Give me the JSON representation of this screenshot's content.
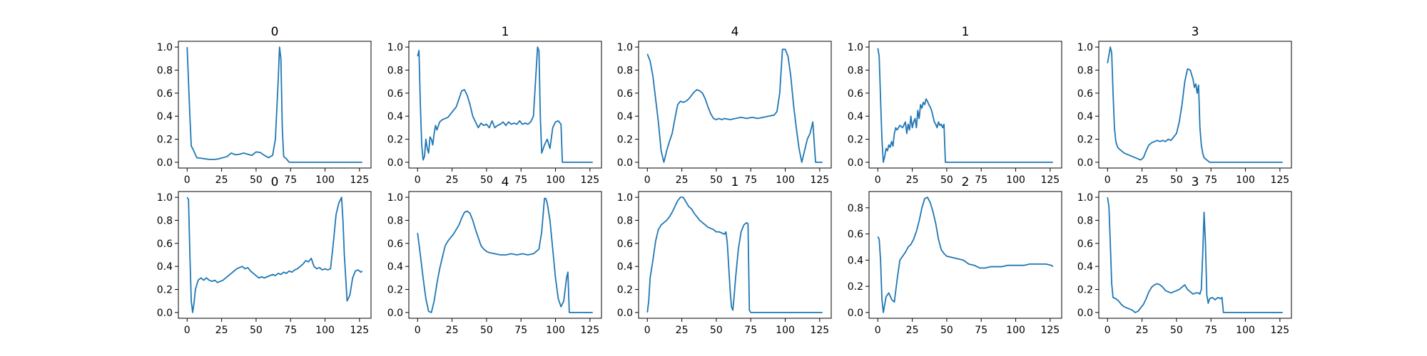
{
  "chart_data": [
    {
      "type": "line",
      "title": "0",
      "xlim": [
        -6.35,
        133.35
      ],
      "ylim": [
        -0.05,
        1.05
      ],
      "xticks": [
        0,
        25,
        50,
        75,
        100,
        125
      ],
      "yticks": [
        0.0,
        0.2,
        0.4,
        0.6,
        0.8,
        1.0
      ],
      "x": [
        0,
        2,
        3,
        4,
        7,
        10,
        13,
        16,
        20,
        23,
        26,
        29,
        32,
        35,
        38,
        41,
        44,
        47,
        50,
        53,
        56,
        59,
        62,
        64,
        66,
        67,
        68,
        69,
        70,
        72,
        74,
        127
      ],
      "values": [
        1.0,
        0.4,
        0.14,
        0.12,
        0.04,
        0.035,
        0.03,
        0.025,
        0.025,
        0.03,
        0.04,
        0.05,
        0.08,
        0.065,
        0.07,
        0.08,
        0.07,
        0.06,
        0.09,
        0.085,
        0.06,
        0.04,
        0.06,
        0.2,
        0.7,
        1.0,
        0.9,
        0.3,
        0.05,
        0.03,
        0.0,
        0.0
      ]
    },
    {
      "type": "line",
      "title": "1",
      "xlim": [
        -6.35,
        133.35
      ],
      "ylim": [
        -0.05,
        1.05
      ],
      "xticks": [
        0,
        25,
        50,
        75,
        100,
        125
      ],
      "yticks": [
        0.0,
        0.2,
        0.4,
        0.6,
        0.8,
        1.0
      ],
      "x": [
        0,
        1,
        2,
        3,
        4,
        5,
        6,
        7,
        8,
        9,
        10,
        11,
        12,
        13,
        14,
        16,
        18,
        20,
        22,
        24,
        26,
        28,
        30,
        32,
        34,
        36,
        38,
        40,
        42,
        44,
        46,
        48,
        50,
        52,
        54,
        56,
        58,
        60,
        62,
        64,
        66,
        68,
        70,
        72,
        74,
        76,
        78,
        80,
        82,
        84,
        86,
        87,
        88,
        89,
        90,
        92,
        94,
        96,
        98,
        100,
        102,
        104,
        105,
        106,
        127
      ],
      "values": [
        0.92,
        0.97,
        0.5,
        0.15,
        0.02,
        0.05,
        0.2,
        0.12,
        0.08,
        0.22,
        0.2,
        0.15,
        0.25,
        0.32,
        0.28,
        0.35,
        0.37,
        0.38,
        0.39,
        0.42,
        0.45,
        0.48,
        0.55,
        0.62,
        0.63,
        0.58,
        0.5,
        0.4,
        0.35,
        0.3,
        0.34,
        0.32,
        0.33,
        0.3,
        0.36,
        0.3,
        0.32,
        0.33,
        0.35,
        0.32,
        0.35,
        0.33,
        0.34,
        0.33,
        0.36,
        0.33,
        0.34,
        0.33,
        0.35,
        0.4,
        0.8,
        1.0,
        0.97,
        0.4,
        0.08,
        0.15,
        0.2,
        0.12,
        0.3,
        0.35,
        0.36,
        0.33,
        0.0,
        0.0,
        0.0
      ]
    },
    {
      "type": "line",
      "title": "4",
      "xlim": [
        -6.35,
        133.35
      ],
      "ylim": [
        -0.05,
        1.05
      ],
      "xticks": [
        0,
        25,
        50,
        75,
        100,
        125
      ],
      "yticks": [
        0.0,
        0.2,
        0.4,
        0.6,
        0.8,
        1.0
      ],
      "x": [
        0,
        2,
        4,
        6,
        8,
        10,
        12,
        14,
        16,
        18,
        20,
        22,
        24,
        26,
        28,
        30,
        32,
        34,
        36,
        38,
        40,
        42,
        44,
        46,
        48,
        50,
        52,
        54,
        56,
        60,
        64,
        68,
        72,
        76,
        80,
        84,
        88,
        92,
        94,
        96,
        98,
        100,
        102,
        104,
        106,
        108,
        110,
        112,
        114,
        116,
        118,
        120,
        122,
        124,
        126,
        127
      ],
      "values": [
        0.94,
        0.88,
        0.75,
        0.55,
        0.35,
        0.1,
        0.0,
        0.1,
        0.18,
        0.25,
        0.38,
        0.5,
        0.53,
        0.52,
        0.53,
        0.55,
        0.58,
        0.61,
        0.63,
        0.62,
        0.6,
        0.55,
        0.48,
        0.42,
        0.38,
        0.37,
        0.38,
        0.37,
        0.38,
        0.37,
        0.38,
        0.39,
        0.38,
        0.39,
        0.38,
        0.39,
        0.4,
        0.41,
        0.44,
        0.6,
        0.98,
        0.98,
        0.92,
        0.75,
        0.5,
        0.3,
        0.12,
        0.0,
        0.1,
        0.2,
        0.25,
        0.35,
        0.0,
        0.0,
        0.0,
        0.0
      ]
    },
    {
      "type": "line",
      "title": "1",
      "xlim": [
        -6.35,
        133.35
      ],
      "ylim": [
        -0.05,
        1.05
      ],
      "xticks": [
        0,
        25,
        50,
        75,
        100,
        125
      ],
      "yticks": [
        0.0,
        0.2,
        0.4,
        0.6,
        0.8,
        1.0
      ],
      "x": [
        0,
        1,
        2,
        3,
        4,
        5,
        6,
        7,
        8,
        9,
        10,
        11,
        12,
        13,
        14,
        16,
        18,
        20,
        21,
        22,
        23,
        24,
        25,
        26,
        27,
        28,
        29,
        30,
        31,
        32,
        33,
        34,
        35,
        36,
        37,
        38,
        39,
        40,
        41,
        42,
        43,
        44,
        45,
        46,
        47,
        48,
        49,
        50,
        127
      ],
      "values": [
        0.99,
        0.92,
        0.55,
        0.2,
        0.0,
        0.05,
        0.12,
        0.1,
        0.15,
        0.13,
        0.18,
        0.14,
        0.25,
        0.3,
        0.28,
        0.32,
        0.3,
        0.35,
        0.25,
        0.33,
        0.28,
        0.4,
        0.3,
        0.35,
        0.38,
        0.3,
        0.45,
        0.38,
        0.5,
        0.47,
        0.52,
        0.5,
        0.55,
        0.53,
        0.5,
        0.48,
        0.45,
        0.4,
        0.35,
        0.33,
        0.3,
        0.35,
        0.32,
        0.33,
        0.3,
        0.33,
        0.0,
        0.0,
        0.0
      ]
    },
    {
      "type": "line",
      "title": "3",
      "xlim": [
        -6.35,
        133.35
      ],
      "ylim": [
        -0.05,
        1.05
      ],
      "xticks": [
        0,
        25,
        50,
        75,
        100,
        125
      ],
      "yticks": [
        0.0,
        0.2,
        0.4,
        0.6,
        0.8,
        1.0
      ],
      "x": [
        0,
        1,
        2,
        3,
        4,
        5,
        6,
        7,
        8,
        10,
        12,
        14,
        16,
        18,
        20,
        22,
        24,
        26,
        28,
        30,
        32,
        34,
        36,
        38,
        40,
        42,
        44,
        46,
        48,
        50,
        52,
        54,
        56,
        58,
        60,
        62,
        63,
        64,
        65,
        66,
        67,
        68,
        69,
        70,
        72,
        74,
        127
      ],
      "values": [
        0.86,
        0.93,
        1.0,
        0.95,
        0.6,
        0.3,
        0.18,
        0.14,
        0.12,
        0.1,
        0.08,
        0.07,
        0.06,
        0.05,
        0.04,
        0.03,
        0.02,
        0.04,
        0.1,
        0.15,
        0.17,
        0.18,
        0.19,
        0.18,
        0.19,
        0.18,
        0.2,
        0.19,
        0.22,
        0.25,
        0.35,
        0.5,
        0.7,
        0.81,
        0.8,
        0.72,
        0.65,
        0.68,
        0.6,
        0.67,
        0.3,
        0.15,
        0.08,
        0.04,
        0.02,
        0.0,
        0.0
      ]
    },
    {
      "type": "line",
      "title": "0",
      "xlim": [
        -6.35,
        133.35
      ],
      "ylim": [
        -0.05,
        1.05
      ],
      "xticks": [
        0,
        25,
        50,
        75,
        100,
        125
      ],
      "yticks": [
        0.0,
        0.2,
        0.4,
        0.6,
        0.8,
        1.0
      ],
      "x": [
        0,
        1,
        2,
        3,
        4,
        5,
        6,
        8,
        10,
        12,
        14,
        16,
        18,
        20,
        22,
        24,
        26,
        28,
        30,
        32,
        34,
        36,
        38,
        40,
        42,
        44,
        46,
        48,
        50,
        52,
        54,
        56,
        58,
        60,
        62,
        64,
        66,
        68,
        70,
        72,
        74,
        76,
        78,
        80,
        82,
        84,
        86,
        88,
        90,
        92,
        94,
        96,
        98,
        100,
        102,
        104,
        106,
        108,
        110,
        112,
        113,
        114,
        116,
        118,
        120,
        122,
        124,
        126,
        127
      ],
      "values": [
        1.0,
        0.98,
        0.5,
        0.1,
        0.0,
        0.08,
        0.2,
        0.28,
        0.3,
        0.28,
        0.3,
        0.28,
        0.27,
        0.28,
        0.26,
        0.27,
        0.28,
        0.3,
        0.32,
        0.34,
        0.36,
        0.38,
        0.39,
        0.4,
        0.38,
        0.39,
        0.36,
        0.34,
        0.32,
        0.3,
        0.31,
        0.3,
        0.31,
        0.32,
        0.33,
        0.32,
        0.34,
        0.33,
        0.35,
        0.34,
        0.36,
        0.35,
        0.37,
        0.38,
        0.4,
        0.42,
        0.45,
        0.44,
        0.47,
        0.4,
        0.38,
        0.39,
        0.37,
        0.38,
        0.37,
        0.38,
        0.6,
        0.85,
        0.95,
        1.0,
        0.8,
        0.5,
        0.1,
        0.15,
        0.3,
        0.36,
        0.37,
        0.35,
        0.36
      ]
    },
    {
      "type": "line",
      "title": "4",
      "xlim": [
        -6.35,
        133.35
      ],
      "ylim": [
        -0.05,
        1.05
      ],
      "xticks": [
        0,
        25,
        50,
        75,
        100,
        125
      ],
      "yticks": [
        0.0,
        0.2,
        0.4,
        0.6,
        0.8,
        1.0
      ],
      "x": [
        0,
        2,
        4,
        6,
        8,
        10,
        12,
        14,
        16,
        18,
        20,
        22,
        24,
        26,
        28,
        30,
        32,
        34,
        36,
        38,
        40,
        42,
        44,
        46,
        48,
        50,
        52,
        56,
        60,
        64,
        68,
        72,
        76,
        80,
        84,
        88,
        90,
        92,
        93,
        94,
        96,
        98,
        100,
        102,
        104,
        106,
        108,
        109,
        110,
        127
      ],
      "values": [
        0.69,
        0.5,
        0.3,
        0.12,
        0.01,
        0.0,
        0.1,
        0.25,
        0.38,
        0.48,
        0.58,
        0.62,
        0.65,
        0.68,
        0.72,
        0.76,
        0.82,
        0.87,
        0.88,
        0.86,
        0.8,
        0.72,
        0.65,
        0.58,
        0.55,
        0.53,
        0.52,
        0.51,
        0.5,
        0.5,
        0.51,
        0.5,
        0.51,
        0.5,
        0.51,
        0.55,
        0.7,
        0.99,
        0.99,
        0.95,
        0.8,
        0.55,
        0.3,
        0.12,
        0.05,
        0.1,
        0.3,
        0.35,
        0.0,
        0.0
      ]
    },
    {
      "type": "line",
      "title": "1",
      "xlim": [
        -6.35,
        133.35
      ],
      "ylim": [
        -0.05,
        1.05
      ],
      "xticks": [
        0,
        25,
        50,
        75,
        100,
        125
      ],
      "yticks": [
        0.0,
        0.2,
        0.4,
        0.6,
        0.8,
        1.0
      ],
      "x": [
        0,
        1,
        2,
        4,
        6,
        8,
        10,
        12,
        14,
        16,
        18,
        20,
        22,
        24,
        26,
        28,
        30,
        32,
        34,
        36,
        38,
        40,
        42,
        44,
        46,
        48,
        50,
        52,
        54,
        56,
        57,
        58,
        59,
        60,
        61,
        62,
        63,
        64,
        66,
        68,
        70,
        72,
        73,
        74,
        75,
        127
      ],
      "values": [
        0.0,
        0.1,
        0.3,
        0.45,
        0.62,
        0.72,
        0.76,
        0.78,
        0.8,
        0.83,
        0.87,
        0.92,
        0.97,
        1.0,
        1.0,
        0.96,
        0.92,
        0.9,
        0.86,
        0.83,
        0.8,
        0.78,
        0.76,
        0.74,
        0.73,
        0.72,
        0.7,
        0.7,
        0.69,
        0.68,
        0.7,
        0.6,
        0.4,
        0.2,
        0.05,
        0.02,
        0.15,
        0.3,
        0.55,
        0.7,
        0.76,
        0.78,
        0.77,
        0.02,
        0.0,
        0.0
      ]
    },
    {
      "type": "line",
      "title": "2",
      "xlim": [
        -6.35,
        133.35
      ],
      "ylim": [
        -0.044,
        0.924
      ],
      "xticks": [
        0,
        25,
        50,
        75,
        100,
        125
      ],
      "yticks": [
        0.0,
        0.2,
        0.4,
        0.6,
        0.8
      ],
      "x": [
        0,
        1,
        2,
        3,
        4,
        6,
        8,
        10,
        12,
        14,
        16,
        18,
        20,
        22,
        24,
        26,
        28,
        30,
        32,
        34,
        36,
        38,
        40,
        42,
        44,
        46,
        48,
        50,
        54,
        58,
        62,
        66,
        70,
        74,
        78,
        82,
        86,
        90,
        94,
        98,
        102,
        106,
        110,
        114,
        118,
        122,
        126,
        127
      ],
      "values": [
        0.58,
        0.56,
        0.4,
        0.1,
        0.0,
        0.12,
        0.15,
        0.1,
        0.08,
        0.25,
        0.4,
        0.43,
        0.46,
        0.5,
        0.52,
        0.56,
        0.62,
        0.7,
        0.8,
        0.87,
        0.88,
        0.84,
        0.77,
        0.68,
        0.56,
        0.48,
        0.45,
        0.43,
        0.42,
        0.41,
        0.4,
        0.37,
        0.36,
        0.34,
        0.34,
        0.35,
        0.35,
        0.35,
        0.36,
        0.36,
        0.36,
        0.36,
        0.37,
        0.37,
        0.37,
        0.37,
        0.36,
        0.35
      ]
    },
    {
      "type": "line",
      "title": "3",
      "xlim": [
        -6.35,
        133.35
      ],
      "ylim": [
        -0.05,
        1.05
      ],
      "xticks": [
        0,
        25,
        50,
        75,
        100,
        125
      ],
      "yticks": [
        0.0,
        0.2,
        0.4,
        0.6,
        0.8,
        1.0
      ],
      "x": [
        0,
        1,
        2,
        3,
        4,
        6,
        8,
        10,
        12,
        14,
        16,
        18,
        20,
        22,
        24,
        26,
        28,
        30,
        32,
        34,
        36,
        38,
        40,
        42,
        44,
        46,
        48,
        50,
        52,
        54,
        56,
        58,
        60,
        62,
        64,
        66,
        67,
        68,
        69,
        70,
        71,
        72,
        73,
        74,
        76,
        78,
        80,
        82,
        83,
        84,
        127
      ],
      "values": [
        1.0,
        0.92,
        0.6,
        0.25,
        0.13,
        0.12,
        0.1,
        0.07,
        0.05,
        0.04,
        0.03,
        0.02,
        0.0,
        0.01,
        0.04,
        0.07,
        0.12,
        0.18,
        0.22,
        0.24,
        0.25,
        0.24,
        0.22,
        0.19,
        0.18,
        0.17,
        0.18,
        0.19,
        0.2,
        0.22,
        0.24,
        0.2,
        0.18,
        0.16,
        0.17,
        0.17,
        0.16,
        0.2,
        0.5,
        0.87,
        0.6,
        0.15,
        0.08,
        0.12,
        0.13,
        0.11,
        0.13,
        0.12,
        0.13,
        0.0,
        0.0
      ]
    }
  ]
}
